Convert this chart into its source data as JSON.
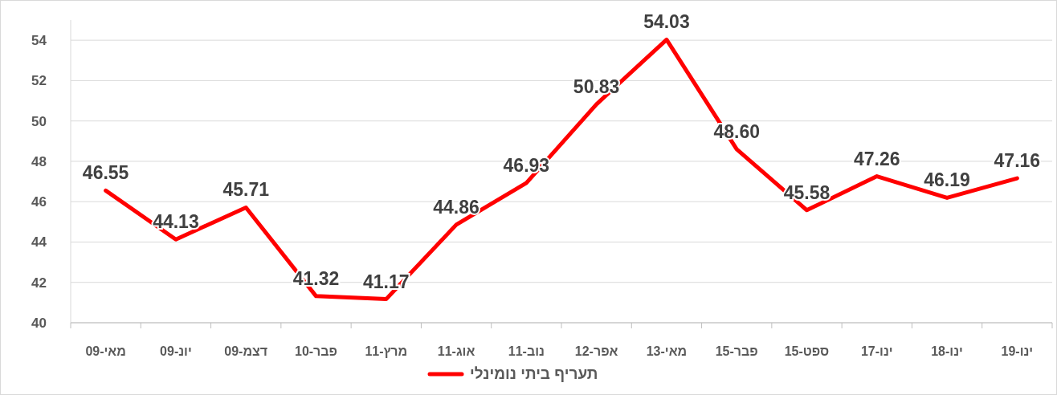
{
  "chart_data": {
    "type": "line",
    "categories": [
      "מאי-09",
      "יונ-09",
      "דצמ-09",
      "פבר-10",
      "מרץ-11",
      "אוג-11",
      "נוב-11",
      "אפר-12",
      "מאי-13",
      "פבר-15",
      "ספט-15",
      "ינו-17",
      "ינו-18",
      "ינו-19"
    ],
    "series": [
      {
        "name": "תעריף ביתי נומינלי",
        "color": "#ff0000",
        "values": [
          46.55,
          44.13,
          45.71,
          41.32,
          41.17,
          44.86,
          46.93,
          50.83,
          54.03,
          48.6,
          45.58,
          47.26,
          46.19,
          47.16
        ]
      }
    ],
    "value_labels": [
      "46.55",
      "44.13",
      "45.71",
      "41.32",
      "41.17",
      "44.86",
      "46.93",
      "50.83",
      "54.03",
      "48.60",
      "45.58",
      "47.26",
      "46.19",
      "47.16"
    ],
    "ylim": [
      40,
      55
    ],
    "yticks": [
      40,
      42,
      44,
      46,
      48,
      50,
      52,
      54
    ],
    "grid": "y",
    "legend": "bottom",
    "marker": "none",
    "line_style": "solid"
  }
}
